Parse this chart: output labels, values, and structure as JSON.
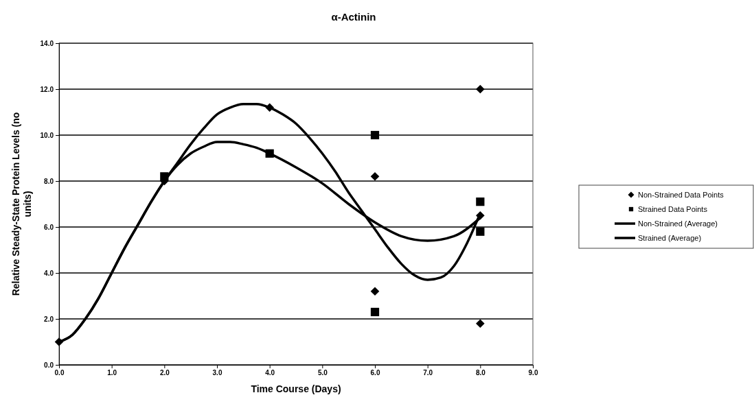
{
  "chart_data": {
    "type": "line",
    "title": "α-Actinin",
    "xlabel": "Time Course (Days)",
    "ylabel": "Relative Steady-State Protein Levels (no units)",
    "xlim": [
      0,
      9
    ],
    "xticks": [
      {
        "value": 0,
        "label": "0.0"
      },
      {
        "value": 1,
        "label": "1.0"
      },
      {
        "value": 2,
        "label": "2.0"
      },
      {
        "value": 3,
        "label": "3.0"
      },
      {
        "value": 4,
        "label": "4.0"
      },
      {
        "value": 5,
        "label": "5.0"
      },
      {
        "value": 6,
        "label": "6.0"
      },
      {
        "value": 7,
        "label": "7.0"
      },
      {
        "value": 8,
        "label": "8.0"
      },
      {
        "value": 9,
        "label": "9.0"
      }
    ],
    "ylim": [
      0,
      14
    ],
    "yticks": [
      {
        "value": 0,
        "label": "0.0"
      },
      {
        "value": 2,
        "label": "2.0"
      },
      {
        "value": 4,
        "label": "4.0"
      },
      {
        "value": 6,
        "label": "6.0"
      },
      {
        "value": 8,
        "label": "8.0"
      },
      {
        "value": 10,
        "label": "10.0"
      },
      {
        "value": 12,
        "label": "12.0"
      },
      {
        "value": 14,
        "label": "14.0"
      }
    ],
    "grid": "y",
    "legend": "right",
    "line_style": "solid",
    "series": [
      {
        "name": "Non-Strained Data Points",
        "type": "scatter",
        "marker": "diamond",
        "color": "#000000",
        "x": [
          0,
          2,
          4,
          6,
          6,
          8,
          8,
          8
        ],
        "values": [
          1.0,
          8.0,
          11.2,
          8.2,
          3.2,
          12.0,
          1.8,
          6.5
        ]
      },
      {
        "name": "Strained Data Points",
        "type": "scatter",
        "marker": "square",
        "color": "#000000",
        "x": [
          2,
          4,
          6,
          6,
          8,
          8
        ],
        "values": [
          8.2,
          9.2,
          10.0,
          2.3,
          7.1,
          5.8
        ]
      },
      {
        "name": "Non-Strained (Average)",
        "marker": "none",
        "color": "#000000",
        "x": [
          0,
          0.25,
          0.5,
          0.75,
          1,
          1.25,
          1.5,
          1.75,
          2,
          2.25,
          2.5,
          2.75,
          3,
          3.25,
          3.5,
          3.75,
          4,
          4.25,
          4.5,
          4.75,
          5,
          5.25,
          5.5,
          5.75,
          6,
          6.25,
          6.5,
          6.75,
          7,
          7.25,
          7.5,
          7.75,
          8
        ],
        "values": [
          1.0,
          1.3,
          2.0,
          2.9,
          4.0,
          5.1,
          6.1,
          7.1,
          8.0,
          8.8,
          9.6,
          10.3,
          10.9,
          11.2,
          11.35,
          11.35,
          11.2,
          10.9,
          10.5,
          9.9,
          9.2,
          8.4,
          7.5,
          6.7,
          5.9,
          5.1,
          4.4,
          3.9,
          3.7,
          3.8,
          4.3,
          5.3,
          6.6
        ]
      },
      {
        "name": "Strained (Average)",
        "marker": "none",
        "color": "#000000",
        "x": [
          0,
          0.25,
          0.5,
          0.75,
          1,
          1.25,
          1.5,
          1.75,
          2,
          2.25,
          2.5,
          2.75,
          3,
          3.25,
          3.5,
          3.75,
          4,
          4.5,
          5,
          5.5,
          6,
          6.5,
          7,
          7.5,
          8
        ],
        "values": [
          1.0,
          1.3,
          2.0,
          2.9,
          4.0,
          5.1,
          6.1,
          7.1,
          8.0,
          8.7,
          9.2,
          9.5,
          9.7,
          9.7,
          9.6,
          9.45,
          9.2,
          8.6,
          7.9,
          7.0,
          6.2,
          5.6,
          5.4,
          5.6,
          6.4
        ]
      }
    ]
  }
}
